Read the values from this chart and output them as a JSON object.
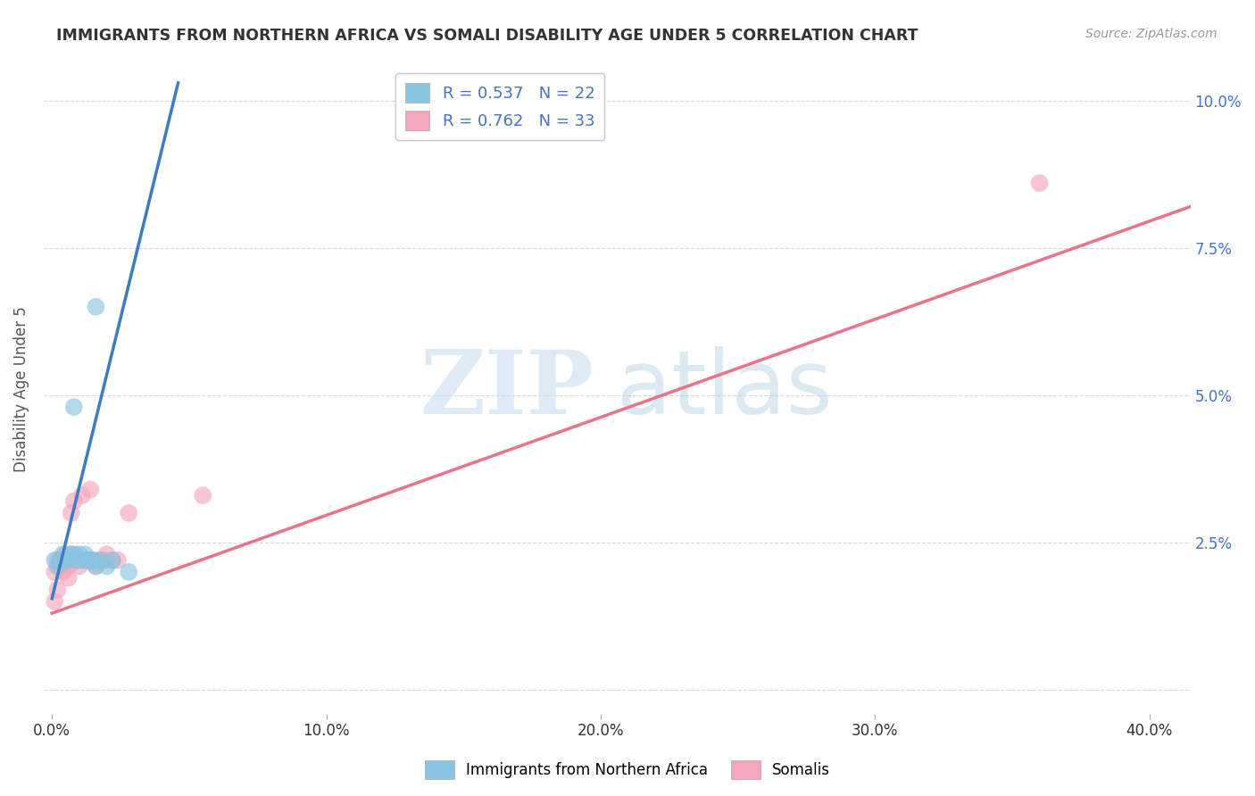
{
  "title": "IMMIGRANTS FROM NORTHERN AFRICA VS SOMALI DISABILITY AGE UNDER 5 CORRELATION CHART",
  "source": "Source: ZipAtlas.com",
  "xlabel_ticks": [
    "0.0%",
    "10.0%",
    "20.0%",
    "30.0%",
    "40.0%"
  ],
  "xlabel_tick_vals": [
    0.0,
    0.1,
    0.2,
    0.3,
    0.4
  ],
  "ylabel": "Disability Age Under 5",
  "ylabel_ticks": [
    "",
    "2.5%",
    "5.0%",
    "7.5%",
    "10.0%"
  ],
  "ylabel_tick_vals": [
    0.0,
    0.025,
    0.05,
    0.075,
    0.1
  ],
  "right_ylabel_ticks": [
    "10.0%",
    "7.5%",
    "5.0%",
    "2.5%",
    ""
  ],
  "xlim": [
    -0.003,
    0.415
  ],
  "ylim": [
    -0.004,
    0.106
  ],
  "legend_label1": "R = 0.537   N = 22",
  "legend_label2": "R = 0.762   N = 33",
  "legend_label_bottom1": "Immigrants from Northern Africa",
  "legend_label_bottom2": "Somalis",
  "blue_color": "#89c4e1",
  "pink_color": "#f4a6bc",
  "blue_line_color": "#3a7ebf",
  "pink_line_color": "#e8748a",
  "blue_scatter_x": [
    0.001,
    0.002,
    0.003,
    0.004,
    0.005,
    0.006,
    0.007,
    0.008,
    0.009,
    0.01,
    0.011,
    0.012,
    0.013,
    0.014,
    0.015,
    0.016,
    0.018,
    0.02,
    0.022,
    0.028,
    0.008,
    0.016
  ],
  "blue_scatter_y": [
    0.022,
    0.021,
    0.022,
    0.023,
    0.022,
    0.022,
    0.023,
    0.023,
    0.022,
    0.023,
    0.022,
    0.023,
    0.022,
    0.022,
    0.022,
    0.021,
    0.022,
    0.021,
    0.022,
    0.02,
    0.048,
    0.065
  ],
  "pink_scatter_x": [
    0.001,
    0.001,
    0.002,
    0.002,
    0.003,
    0.003,
    0.004,
    0.004,
    0.005,
    0.005,
    0.006,
    0.006,
    0.007,
    0.007,
    0.008,
    0.008,
    0.009,
    0.01,
    0.011,
    0.012,
    0.013,
    0.014,
    0.015,
    0.016,
    0.017,
    0.018,
    0.019,
    0.02,
    0.022,
    0.024,
    0.028,
    0.055,
    0.36
  ],
  "pink_scatter_y": [
    0.02,
    0.015,
    0.022,
    0.017,
    0.021,
    0.022,
    0.022,
    0.02,
    0.023,
    0.022,
    0.021,
    0.019,
    0.023,
    0.03,
    0.022,
    0.032,
    0.022,
    0.021,
    0.033,
    0.022,
    0.022,
    0.034,
    0.022,
    0.021,
    0.022,
    0.022,
    0.022,
    0.023,
    0.022,
    0.022,
    0.03,
    0.033,
    0.086
  ],
  "blue_line_x": [
    0.0,
    0.046
  ],
  "blue_line_y": [
    0.0155,
    0.103
  ],
  "pink_line_x": [
    0.0,
    0.415
  ],
  "pink_line_y": [
    0.013,
    0.082
  ],
  "watermark1": "ZIP",
  "watermark2": "atlas",
  "background_color": "#ffffff",
  "grid_color": "#d8d8d8",
  "title_color": "#333333",
  "source_color": "#999999",
  "axis_tick_color": "#4472c4",
  "xlabel_color": "#333333"
}
